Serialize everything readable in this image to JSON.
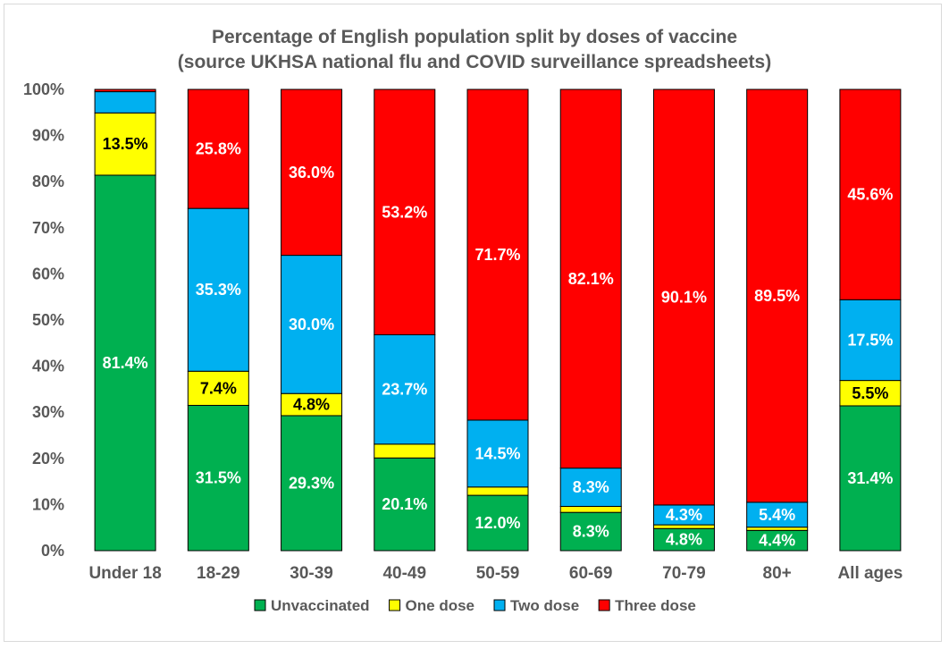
{
  "chart_data": {
    "type": "bar",
    "stacked": "percent",
    "title": "Percentage of English population split by doses of vaccine",
    "subtitle": "(source UKHSA national flu and COVID surveillance spreadsheets)",
    "categories": [
      "Under 18",
      "18-29",
      "30-39",
      "40-49",
      "50-59",
      "60-69",
      "70-79",
      "80+",
      "All ages"
    ],
    "ylim": [
      0,
      100
    ],
    "yticks": [
      "0%",
      "10%",
      "20%",
      "30%",
      "40%",
      "50%",
      "60%",
      "70%",
      "80%",
      "90%",
      "100%"
    ],
    "grid": false,
    "legend_position": "bottom",
    "series": [
      {
        "name": "Unvaccinated",
        "color": "#00b050",
        "values": [
          81.4,
          31.5,
          29.3,
          20.1,
          12.0,
          8.3,
          4.8,
          4.4,
          31.4
        ],
        "labels": [
          "81.4%",
          "31.5%",
          "29.3%",
          "20.1%",
          "12.0%",
          "8.3%",
          "4.8%",
          "4.4%",
          "31.4%"
        ]
      },
      {
        "name": "One dose",
        "color": "#ffff00",
        "values": [
          13.5,
          7.4,
          4.8,
          3.0,
          1.8,
          1.3,
          0.8,
          0.7,
          5.5
        ],
        "labels": [
          "13.5%",
          "7.4%",
          "4.8%",
          "",
          "",
          "",
          "",
          "",
          "5.5%"
        ]
      },
      {
        "name": "Two dose",
        "color": "#00b0f0",
        "values": [
          4.6,
          35.3,
          30.0,
          23.7,
          14.5,
          8.3,
          4.3,
          5.4,
          17.5
        ],
        "labels": [
          "",
          "35.3%",
          "30.0%",
          "23.7%",
          "14.5%",
          "8.3%",
          "4.3%",
          "5.4%",
          "17.5%"
        ]
      },
      {
        "name": "Three dose",
        "color": "#ff0000",
        "values": [
          0.5,
          25.8,
          36.0,
          53.2,
          71.7,
          82.1,
          90.1,
          89.5,
          45.6
        ],
        "labels": [
          "",
          "25.8%",
          "36.0%",
          "53.2%",
          "71.7%",
          "82.1%",
          "90.1%",
          "89.5%",
          "45.6%"
        ]
      }
    ],
    "label_text_colors": {
      "Unvaccinated": "#ffffff",
      "One dose": "#000000",
      "Two dose": "#ffffff",
      "Three dose": "#ffffff"
    }
  }
}
